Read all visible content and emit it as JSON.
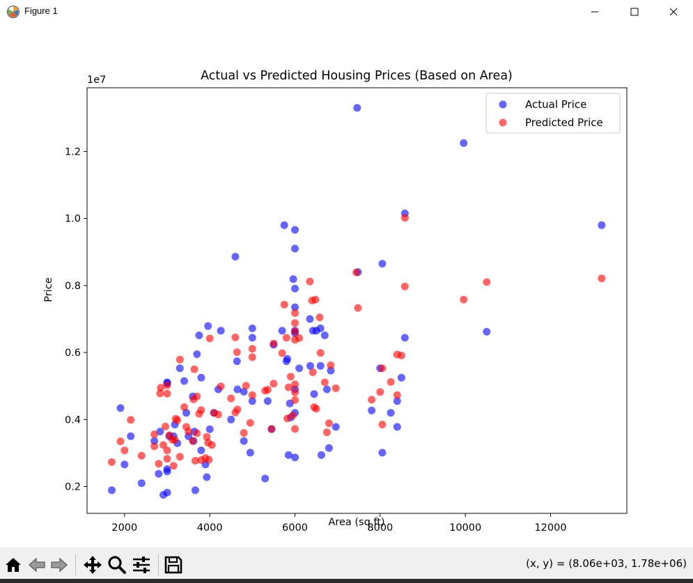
{
  "window": {
    "title": "Figure 1",
    "app_icon": "matplotlib-icon",
    "controls": {
      "minimize_icon": "minimize-icon",
      "maximize_icon": "maximize-icon",
      "close_icon": "close-icon"
    }
  },
  "toolbar": {
    "buttons": [
      {
        "name": "home",
        "icon": "home-icon"
      },
      {
        "name": "back",
        "icon": "back-arrow-icon"
      },
      {
        "name": "forward",
        "icon": "forward-arrow-icon"
      },
      {
        "name": "pan",
        "icon": "move-icon"
      },
      {
        "name": "zoom",
        "icon": "zoom-icon"
      },
      {
        "name": "configure-subplots",
        "icon": "sliders-icon"
      },
      {
        "name": "save",
        "icon": "save-icon"
      }
    ],
    "coords_text": "(x, y) = (8.06e+03, 1.78e+06)"
  },
  "chart_data": {
    "type": "scatter",
    "title": "Actual vs Predicted Housing Prices (Based on Area)",
    "xlabel": "Area (sq ft)",
    "ylabel": "Price",
    "y_offset_text": "1e7",
    "xlim": [
      1120,
      13790
    ],
    "ylim": [
      1200000,
      13900000
    ],
    "xticks": [
      2000,
      4000,
      6000,
      8000,
      10000,
      12000
    ],
    "xtick_labels": [
      "2000",
      "4000",
      "6000",
      "8000",
      "10000",
      "12000"
    ],
    "yticks": [
      2000000,
      4000000,
      6000000,
      8000000,
      10000000,
      12000000
    ],
    "ytick_labels": [
      "0.2",
      "0.4",
      "0.6",
      "0.8",
      "1.0",
      "1.2"
    ],
    "legend_position": "top-right",
    "grid": false,
    "series": [
      {
        "name": "Actual Price",
        "color": "#0000ff",
        "alpha": 0.6,
        "points": [
          [
            1700,
            1890000
          ],
          [
            1905,
            4340000
          ],
          [
            2000,
            2660000
          ],
          [
            2145,
            3500000
          ],
          [
            2400,
            2100000
          ],
          [
            2700,
            3360000
          ],
          [
            2800,
            2380000
          ],
          [
            2835,
            3640000
          ],
          [
            2910,
            1750000
          ],
          [
            3000,
            1820000
          ],
          [
            3000,
            2450000
          ],
          [
            3000,
            2520000
          ],
          [
            3000,
            5110000
          ],
          [
            3000,
            5080000
          ],
          [
            3050,
            3500000
          ],
          [
            3150,
            3500000
          ],
          [
            3180,
            3850000
          ],
          [
            3240,
            3290000
          ],
          [
            3300,
            5530000
          ],
          [
            3400,
            5150000
          ],
          [
            3450,
            4200000
          ],
          [
            3500,
            3500000
          ],
          [
            3600,
            4690000
          ],
          [
            3620,
            3360000
          ],
          [
            3640,
            3640000
          ],
          [
            3660,
            1890000
          ],
          [
            3700,
            5950000
          ],
          [
            3750,
            6510000
          ],
          [
            3800,
            5250000
          ],
          [
            3800,
            3080000
          ],
          [
            3900,
            2660000
          ],
          [
            3930,
            2280000
          ],
          [
            3960,
            6790000
          ],
          [
            4000,
            3710000
          ],
          [
            4100,
            4200000
          ],
          [
            4200,
            4900000
          ],
          [
            4260,
            6650000
          ],
          [
            4500,
            4000000
          ],
          [
            4600,
            8860000
          ],
          [
            4640,
            5740000
          ],
          [
            4650,
            4900000
          ],
          [
            4800,
            3360000
          ],
          [
            4800,
            4830000
          ],
          [
            4950,
            3010000
          ],
          [
            5000,
            6440000
          ],
          [
            5000,
            6720000
          ],
          [
            5000,
            4550000
          ],
          [
            5300,
            2240000
          ],
          [
            5360,
            4550000
          ],
          [
            5500,
            6230000
          ],
          [
            5450,
            3710000
          ],
          [
            5700,
            6650000
          ],
          [
            5750,
            9800000
          ],
          [
            5800,
            5740000
          ],
          [
            5820,
            5810000
          ],
          [
            5850,
            2940000
          ],
          [
            5880,
            4480000
          ],
          [
            5900,
            4060000
          ],
          [
            5960,
            8190000
          ],
          [
            6000,
            7350000
          ],
          [
            6000,
            9100000
          ],
          [
            6000,
            9660000
          ],
          [
            6000,
            7910000
          ],
          [
            6000,
            6650000
          ],
          [
            6000,
            6580000
          ],
          [
            6000,
            4900000
          ],
          [
            6000,
            4200000
          ],
          [
            6000,
            2870000
          ],
          [
            6100,
            5530000
          ],
          [
            6350,
            7000000
          ],
          [
            6360,
            5600000
          ],
          [
            6420,
            6650000
          ],
          [
            6450,
            4760000
          ],
          [
            6500,
            6650000
          ],
          [
            6600,
            6720000
          ],
          [
            6600,
            5600000
          ],
          [
            6620,
            2940000
          ],
          [
            6700,
            6510000
          ],
          [
            6750,
            4900000
          ],
          [
            6800,
            3150000
          ],
          [
            6840,
            5460000
          ],
          [
            6960,
            3780000
          ],
          [
            7460,
            13300000
          ],
          [
            7480,
            8400000
          ],
          [
            7800,
            4270000
          ],
          [
            8000,
            5530000
          ],
          [
            8050,
            8650000
          ],
          [
            8050,
            3010000
          ],
          [
            8250,
            4200000
          ],
          [
            8400,
            4550000
          ],
          [
            8400,
            3780000
          ],
          [
            8500,
            5250000
          ],
          [
            8580,
            10150000
          ],
          [
            8580,
            6440000
          ],
          [
            9960,
            12250000
          ],
          [
            10500,
            6620000
          ],
          [
            13200,
            9800000
          ]
        ]
      },
      {
        "name": "Predicted Price",
        "color": "#ff0000",
        "alpha": 0.6,
        "points": [
          [
            1700,
            2730000
          ],
          [
            1905,
            3350000
          ],
          [
            2000,
            3080000
          ],
          [
            2145,
            3990000
          ],
          [
            2400,
            2920000
          ],
          [
            2700,
            3200000
          ],
          [
            2700,
            3560000
          ],
          [
            2800,
            2680000
          ],
          [
            2835,
            4780000
          ],
          [
            2850,
            4950000
          ],
          [
            2910,
            3240000
          ],
          [
            2960,
            3790000
          ],
          [
            3000,
            3080000
          ],
          [
            3000,
            2830000
          ],
          [
            3000,
            4770000
          ],
          [
            3000,
            5020000
          ],
          [
            3050,
            3530000
          ],
          [
            3120,
            3400000
          ],
          [
            3150,
            2620000
          ],
          [
            3180,
            3390000
          ],
          [
            3200,
            4020000
          ],
          [
            3240,
            3980000
          ],
          [
            3300,
            2890000
          ],
          [
            3300,
            5790000
          ],
          [
            3400,
            4370000
          ],
          [
            3450,
            3780000
          ],
          [
            3500,
            3640000
          ],
          [
            3600,
            3360000
          ],
          [
            3620,
            4600000
          ],
          [
            3640,
            5500000
          ],
          [
            3660,
            2770000
          ],
          [
            3700,
            4690000
          ],
          [
            3700,
            3590000
          ],
          [
            3750,
            4170000
          ],
          [
            3800,
            4280000
          ],
          [
            3800,
            2790000
          ],
          [
            3900,
            2850000
          ],
          [
            3930,
            3480000
          ],
          [
            3960,
            3310000
          ],
          [
            3980,
            2800000
          ],
          [
            4000,
            6420000
          ],
          [
            4050,
            3240000
          ],
          [
            4100,
            4200000
          ],
          [
            4200,
            4150000
          ],
          [
            4260,
            4990000
          ],
          [
            4500,
            4630000
          ],
          [
            4600,
            6450000
          ],
          [
            4640,
            6010000
          ],
          [
            4650,
            4300000
          ],
          [
            4600,
            4210000
          ],
          [
            4800,
            3600000
          ],
          [
            4850,
            5010000
          ],
          [
            4950,
            3900000
          ],
          [
            5000,
            6110000
          ],
          [
            5000,
            4730000
          ],
          [
            5000,
            5860000
          ],
          [
            5300,
            4860000
          ],
          [
            5360,
            4890000
          ],
          [
            5500,
            5070000
          ],
          [
            5500,
            6270000
          ],
          [
            5450,
            3720000
          ],
          [
            5700,
            5980000
          ],
          [
            5750,
            7430000
          ],
          [
            5800,
            6440000
          ],
          [
            5820,
            4030000
          ],
          [
            5850,
            4960000
          ],
          [
            5900,
            5280000
          ],
          [
            5950,
            4120000
          ],
          [
            6000,
            6880000
          ],
          [
            6000,
            6630000
          ],
          [
            6000,
            6380000
          ],
          [
            6000,
            5050000
          ],
          [
            6000,
            4810000
          ],
          [
            6000,
            4580000
          ],
          [
            6000,
            7180000
          ],
          [
            6000,
            3720000
          ],
          [
            6100,
            6430000
          ],
          [
            6350,
            8120000
          ],
          [
            6400,
            7550000
          ],
          [
            6420,
            5410000
          ],
          [
            6450,
            4370000
          ],
          [
            6480,
            7580000
          ],
          [
            6500,
            4320000
          ],
          [
            6580,
            7050000
          ],
          [
            6600,
            5990000
          ],
          [
            6700,
            5110000
          ],
          [
            6750,
            3620000
          ],
          [
            6800,
            3890000
          ],
          [
            6840,
            5620000
          ],
          [
            6960,
            4930000
          ],
          [
            7440,
            8390000
          ],
          [
            7480,
            7330000
          ],
          [
            7800,
            4590000
          ],
          [
            8000,
            4820000
          ],
          [
            8050,
            5530000
          ],
          [
            8050,
            3850000
          ],
          [
            8250,
            5120000
          ],
          [
            8400,
            5940000
          ],
          [
            8400,
            4730000
          ],
          [
            8500,
            5910000
          ],
          [
            8580,
            10020000
          ],
          [
            8580,
            7970000
          ],
          [
            9960,
            7580000
          ],
          [
            10500,
            8100000
          ],
          [
            13200,
            8210000
          ]
        ]
      }
    ]
  }
}
